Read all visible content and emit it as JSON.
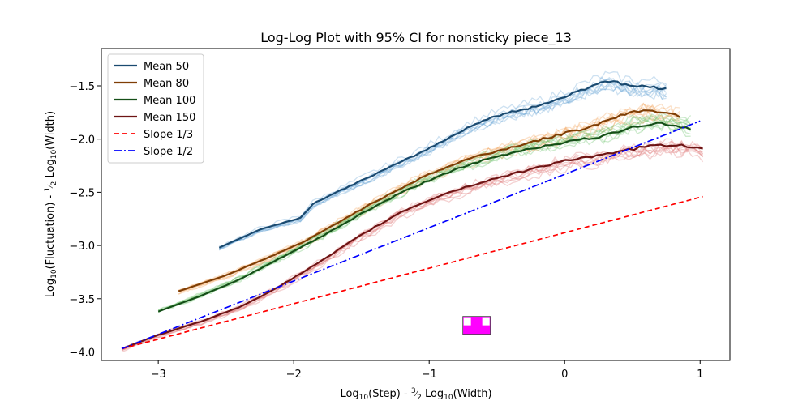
{
  "chart_data": {
    "type": "line",
    "title": "Log-Log Plot with 95% CI for nonsticky piece_13",
    "xlabel": {
      "pre": "Log",
      "sub1": "10",
      "mid": "(Step) - ",
      "frac_num": "3",
      "frac_den": "2",
      "post_pre": " Log",
      "sub2": "10",
      "post": "(Width)"
    },
    "ylabel": {
      "pre": "Log",
      "sub1": "10",
      "mid": "(Fluctuation) - ",
      "frac_num": "1",
      "frac_den": "2",
      "post_pre": " Log",
      "sub2": "10",
      "post": "(Width)"
    },
    "xlim": [
      -3.42,
      1.22
    ],
    "ylim": [
      -4.08,
      -1.15
    ],
    "xticks": [
      -3,
      -2,
      -1,
      0,
      1
    ],
    "xtick_labels": [
      "−3",
      "−2",
      "−1",
      "0",
      "1"
    ],
    "yticks": [
      -4.0,
      -3.5,
      -3.0,
      -2.5,
      -2.0,
      -1.5
    ],
    "ytick_labels": [
      "−4.0",
      "−3.5",
      "−3.0",
      "−2.5",
      "−2.0",
      "−1.5"
    ],
    "grid": false,
    "legend_position": "top-left",
    "series": [
      {
        "name": "Mean 50",
        "color": "#1a4a70",
        "band_color": "#6fa8d6",
        "x": [
          -2.55,
          -2.25,
          -1.95,
          -1.85,
          -1.6,
          -1.35,
          -1.1,
          -0.9,
          -0.7,
          -0.5,
          -0.3,
          -0.1,
          0.1,
          0.3,
          0.5,
          0.75
        ],
        "y": [
          -3.02,
          -2.85,
          -2.74,
          -2.6,
          -2.45,
          -2.3,
          -2.15,
          -2.02,
          -1.88,
          -1.78,
          -1.72,
          -1.65,
          -1.55,
          -1.45,
          -1.5,
          -1.52
        ]
      },
      {
        "name": "Mean 80",
        "color": "#7f3e05",
        "band_color": "#f4a865",
        "x": [
          -2.85,
          -2.5,
          -2.2,
          -1.9,
          -1.6,
          -1.3,
          -1.0,
          -0.7,
          -0.4,
          -0.1,
          0.2,
          0.4,
          0.6,
          0.85
        ],
        "y": [
          -3.43,
          -3.28,
          -3.12,
          -2.95,
          -2.73,
          -2.52,
          -2.33,
          -2.18,
          -2.08,
          -1.98,
          -1.88,
          -1.78,
          -1.72,
          -1.78
        ]
      },
      {
        "name": "Mean 100",
        "color": "#154f18",
        "band_color": "#6dc46d",
        "x": [
          -3.0,
          -2.7,
          -2.4,
          -2.1,
          -1.8,
          -1.5,
          -1.2,
          -0.9,
          -0.6,
          -0.3,
          0.0,
          0.3,
          0.5,
          0.7,
          0.93
        ],
        "y": [
          -3.62,
          -3.48,
          -3.32,
          -3.12,
          -2.92,
          -2.7,
          -2.5,
          -2.33,
          -2.2,
          -2.1,
          -2.03,
          -1.97,
          -1.88,
          -1.85,
          -1.9
        ]
      },
      {
        "name": "Mean 150",
        "color": "#6e1414",
        "band_color": "#e07a7a",
        "x": [
          -3.27,
          -3.0,
          -2.7,
          -2.4,
          -2.1,
          -1.8,
          -1.5,
          -1.2,
          -0.9,
          -0.6,
          -0.3,
          0.0,
          0.3,
          0.55,
          0.8,
          1.02
        ],
        "y": [
          -3.97,
          -3.84,
          -3.72,
          -3.58,
          -3.38,
          -3.15,
          -2.9,
          -2.68,
          -2.52,
          -2.4,
          -2.3,
          -2.2,
          -2.15,
          -2.08,
          -2.05,
          -2.08
        ]
      },
      {
        "name": "Slope 1/3",
        "color": "#ff0000",
        "dash": "6,4",
        "x": [
          -3.27,
          1.02
        ],
        "y": [
          -3.97,
          -2.54
        ]
      },
      {
        "name": "Slope 1/2",
        "color": "#0000ff",
        "dash": "9,3,2,3",
        "x": [
          -3.27,
          1.0
        ],
        "y": [
          -3.97,
          -1.83
        ]
      }
    ],
    "annotation_marker": {
      "x": -0.65,
      "y": -3.75,
      "color": "#ff00ff"
    }
  }
}
